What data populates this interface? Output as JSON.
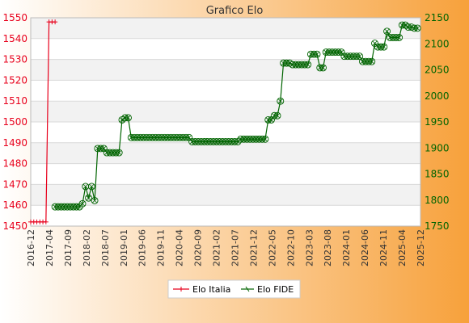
{
  "chart_data": {
    "type": "line",
    "title": "Grafico Elo",
    "background_gradient": [
      "#ffffff",
      "#f7a13b"
    ],
    "grid": true,
    "legend_position": "bottom-center",
    "x_tick_labels": [
      "2016-12",
      "2017-04",
      "2017-09",
      "2018-02",
      "2018-07",
      "2019-01",
      "2019-06",
      "2019-11",
      "2020-04",
      "2020-09",
      "2021-02",
      "2021-07",
      "2021-12",
      "2022-05",
      "2022-10",
      "2023-03",
      "2023-08",
      "2024-01",
      "2024-06",
      "2024-11",
      "2025-04",
      "2025-12"
    ],
    "y_left": {
      "min": 1450,
      "max": 1550,
      "ticks": [
        1450,
        1460,
        1470,
        1480,
        1490,
        1500,
        1510,
        1520,
        1530,
        1540,
        1550
      ]
    },
    "y_right": {
      "min": 1750,
      "max": 2150,
      "ticks": [
        1750,
        1800,
        1850,
        1900,
        1950,
        2000,
        2050,
        2100,
        2150
      ]
    },
    "series": [
      {
        "name": "Elo Italia",
        "axis": "left",
        "color": "#e8001c",
        "values": [
          1452,
          1452,
          1452,
          1452,
          1452,
          1452,
          1548,
          1548,
          1548
        ]
      },
      {
        "name": "Elo FIDE",
        "axis": "right",
        "color": "#006400",
        "values": [
          1787,
          1787,
          1787,
          1787,
          1787,
          1787,
          1787,
          1787,
          1787,
          1793,
          1826,
          1804,
          1826,
          1799,
          1899,
          1899,
          1899,
          1891,
          1891,
          1891,
          1891,
          1891,
          1954,
          1958,
          1958,
          1920,
          1920,
          1920,
          1920,
          1920,
          1920,
          1920,
          1920,
          1920,
          1920,
          1920,
          1920,
          1920,
          1920,
          1920,
          1920,
          1920,
          1920,
          1920,
          1920,
          1912,
          1912,
          1912,
          1912,
          1912,
          1912,
          1912,
          1912,
          1912,
          1912,
          1912,
          1912,
          1912,
          1912,
          1912,
          1912,
          1917,
          1917,
          1917,
          1917,
          1917,
          1917,
          1917,
          1917,
          1917,
          1954,
          1954,
          1962,
          1962,
          1990,
          2063,
          2063,
          2063,
          2060,
          2060,
          2060,
          2060,
          2060,
          2060,
          2080,
          2080,
          2080,
          2054,
          2054,
          2084,
          2084,
          2084,
          2084,
          2084,
          2084,
          2076,
          2076,
          2076,
          2076,
          2076,
          2076,
          2066,
          2066,
          2066,
          2066,
          2101,
          2094,
          2094,
          2094,
          2124,
          2112,
          2112,
          2112,
          2112,
          2136,
          2136,
          2132,
          2132,
          2130,
          2130
        ]
      }
    ]
  }
}
